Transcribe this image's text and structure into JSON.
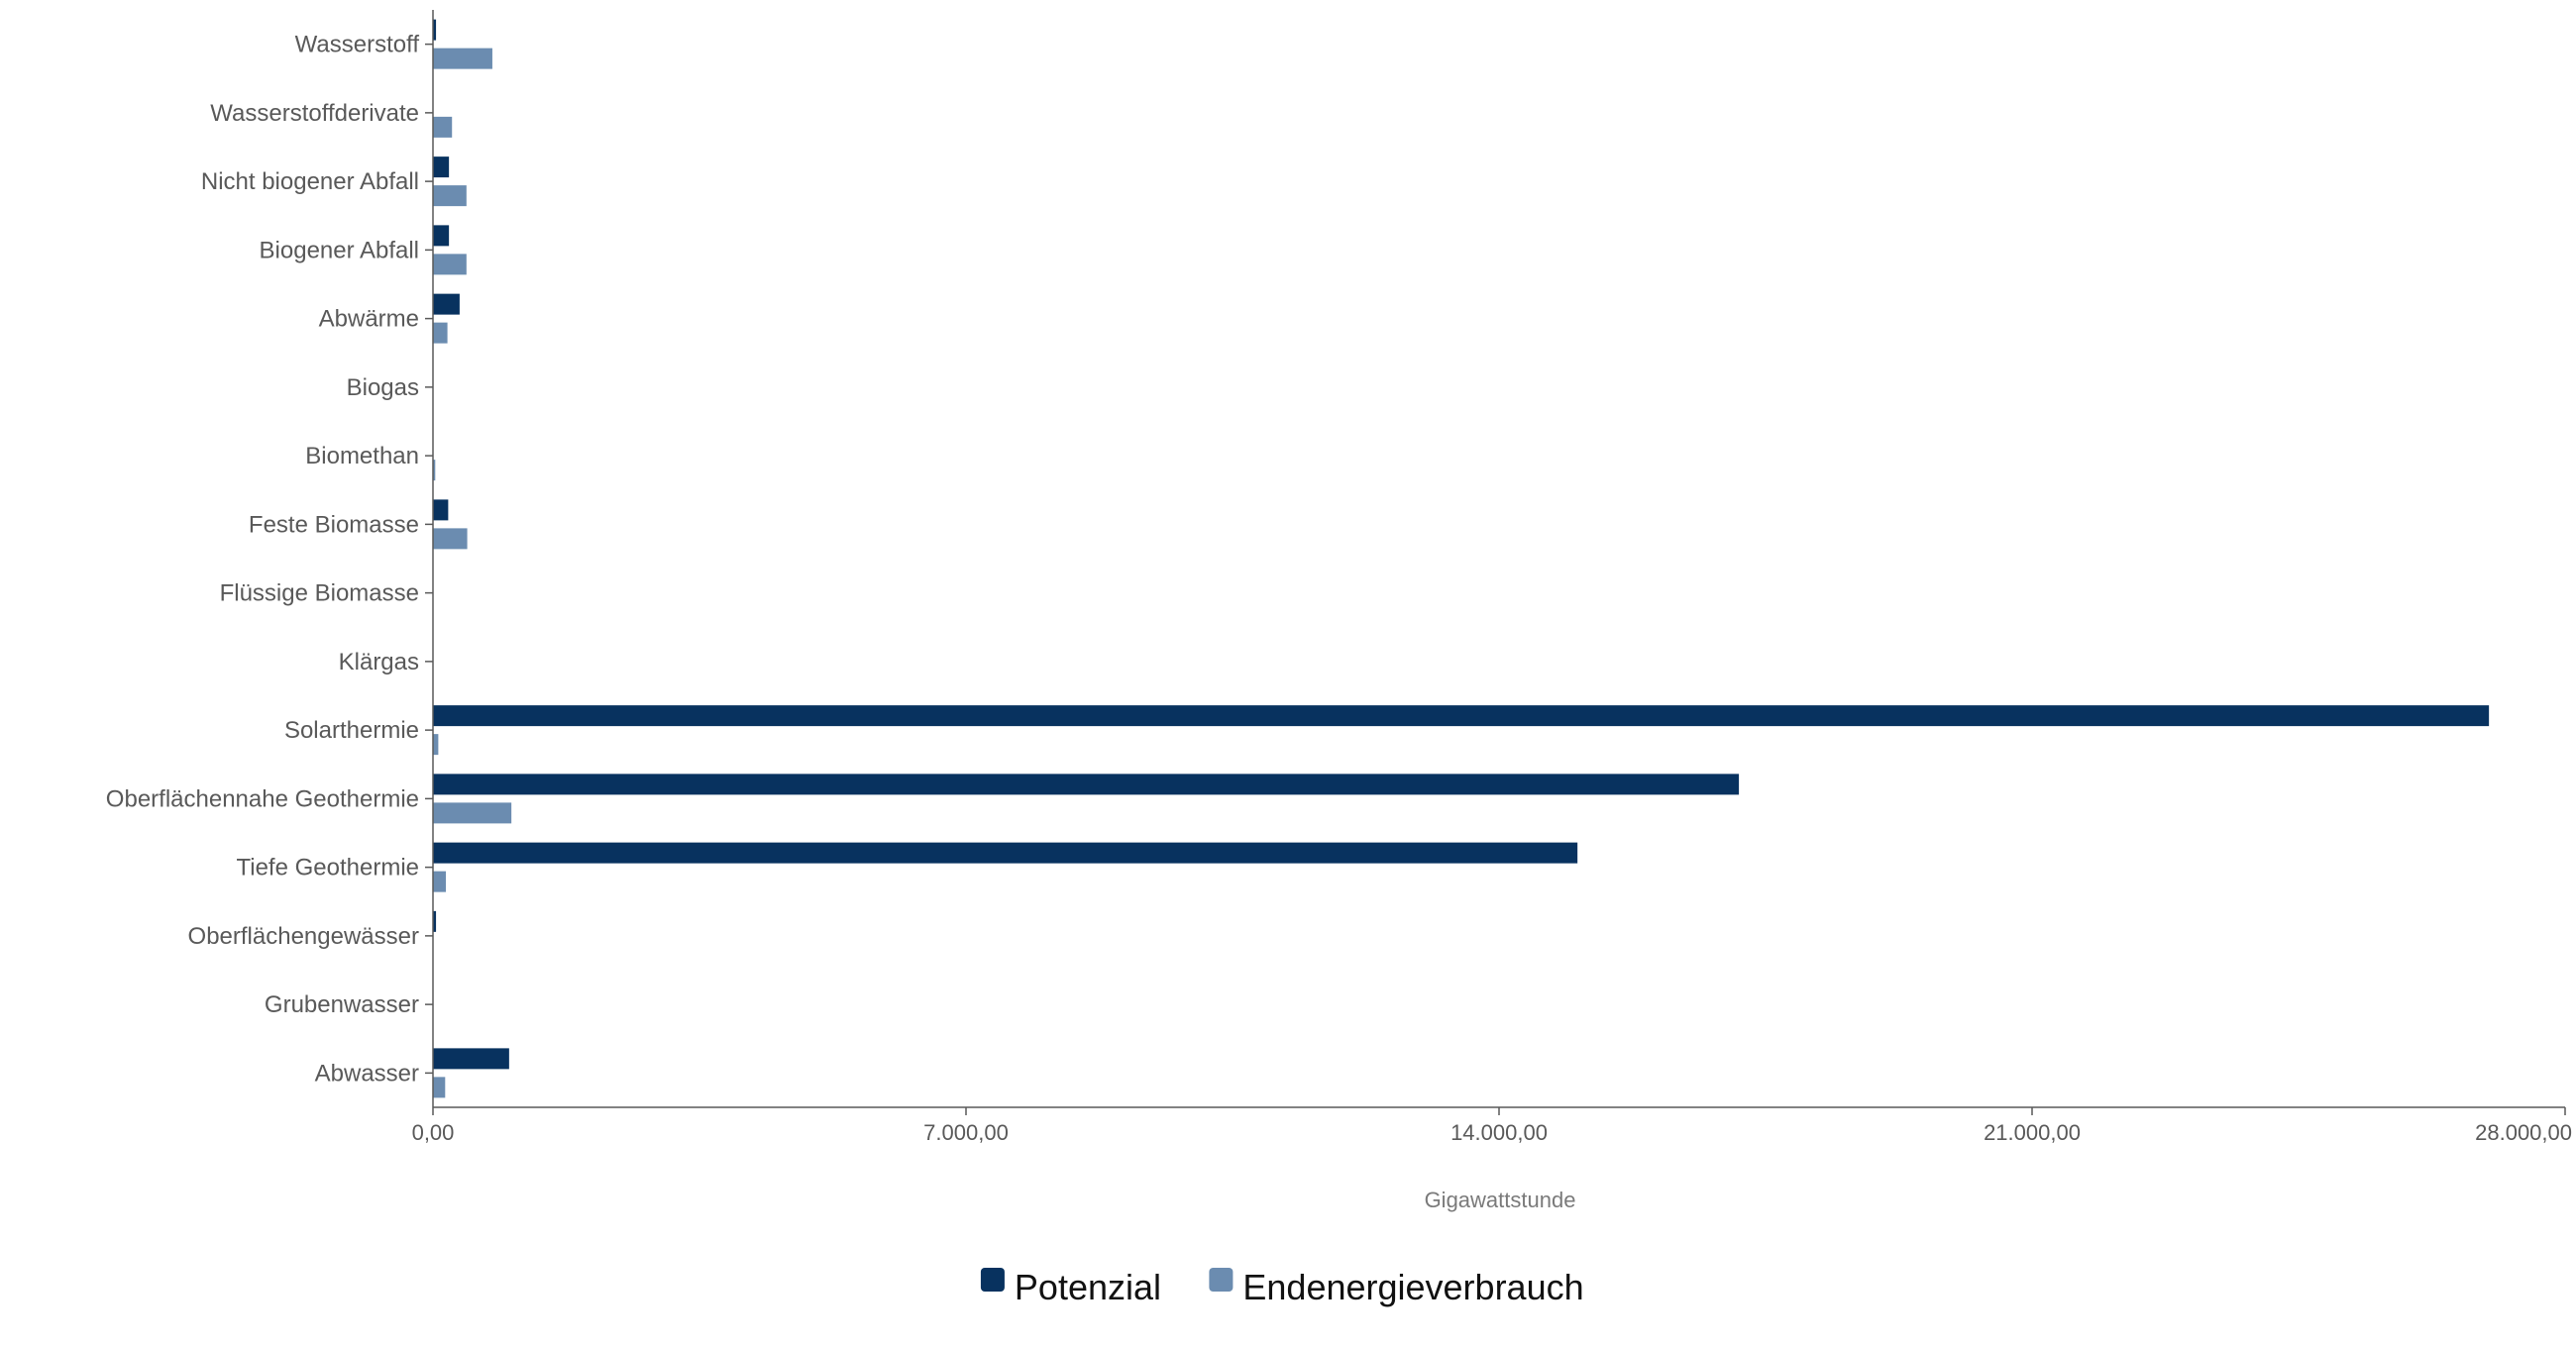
{
  "chart_data": {
    "type": "bar",
    "orientation": "horizontal",
    "categories": [
      "Wasserstoff",
      "Wasserstoffderivate",
      "Nicht biogener Abfall",
      "Biogener Abfall",
      "Abwärme",
      "Biogas",
      "Biomethan",
      "Feste Biomasse",
      "Flüssige Biomasse",
      "Klärgas",
      "Solarthermie",
      "Oberflächennahe Geothermie",
      "Tiefe Geothermie",
      "Oberflächengewässer",
      "Grubenwasser",
      "Abwasser"
    ],
    "series": [
      {
        "name": "Potenzial",
        "color": "#08325f",
        "values": [
          40,
          0,
          210,
          210,
          350,
          0,
          0,
          200,
          0,
          0,
          27000,
          17150,
          15030,
          40,
          0,
          1000
        ]
      },
      {
        "name": "Endenergieverbrauch",
        "color": "#6b8cb0",
        "values": [
          780,
          250,
          440,
          440,
          190,
          0,
          30,
          450,
          0,
          0,
          70,
          1030,
          170,
          0,
          0,
          160
        ]
      }
    ],
    "xlabel": "Gigawattstunde",
    "ylabel": "",
    "xlim": [
      0,
      28000
    ],
    "xticks": [
      "0,00",
      "7.000,00",
      "14.000,00",
      "21.000,00",
      "28.000,00"
    ],
    "xtick_values": [
      0,
      7000,
      14000,
      21000,
      28000
    ],
    "grid": false,
    "legend_position": "bottom-center"
  }
}
